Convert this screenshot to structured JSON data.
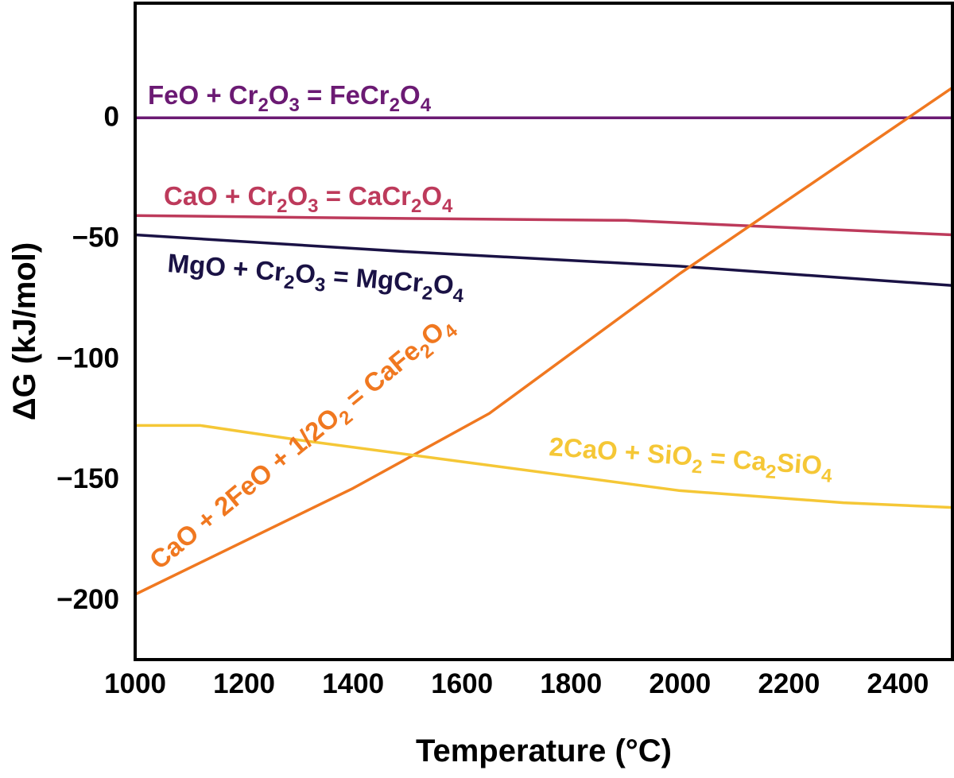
{
  "chart_data": {
    "type": "line",
    "xlabel": "Temperature (°C)",
    "ylabel": "ΔG (kJ/mol)",
    "xlim": [
      1000,
      2500
    ],
    "ylim": [
      -225,
      47
    ],
    "x_ticks": [
      "1000",
      "1200",
      "1400",
      "1600",
      "1800",
      "2000",
      "2200",
      "2400"
    ],
    "y_ticks": [
      "0",
      "−50",
      "−100",
      "−150",
      "−200"
    ],
    "grid": false,
    "series": [
      {
        "name": "FeO + Cr2O3 = FeCr2O4",
        "color": "#6b1a73",
        "points": [
          [
            1000,
            -0.5
          ],
          [
            2500,
            -0.5
          ]
        ]
      },
      {
        "name": "CaO + Cr2O3 = CaCr2O4",
        "color": "#bd3a5b",
        "points": [
          [
            1000,
            -41
          ],
          [
            1400,
            -42
          ],
          [
            1900,
            -43
          ],
          [
            2500,
            -49
          ]
        ]
      },
      {
        "name": "MgO + Cr2O3 = MgCr2O4",
        "color": "#1a1245",
        "points": [
          [
            1000,
            -49
          ],
          [
            1500,
            -56
          ],
          [
            2000,
            -62
          ],
          [
            2500,
            -70
          ]
        ]
      },
      {
        "name": "CaO + 2FeO + 1/2O2 = CaFe2O4",
        "color": "#f07820",
        "points": [
          [
            1000,
            -198
          ],
          [
            1400,
            -154
          ],
          [
            1650,
            -123
          ],
          [
            2000,
            -65
          ],
          [
            2500,
            12
          ]
        ]
      },
      {
        "name": "2CaO + SiO2 = Ca2SiO4",
        "color": "#f5c736",
        "points": [
          [
            1000,
            -128
          ],
          [
            1120,
            -128
          ],
          [
            1300,
            -134
          ],
          [
            1600,
            -143
          ],
          [
            2000,
            -155
          ],
          [
            2300,
            -160
          ],
          [
            2500,
            -162
          ]
        ]
      }
    ]
  }
}
